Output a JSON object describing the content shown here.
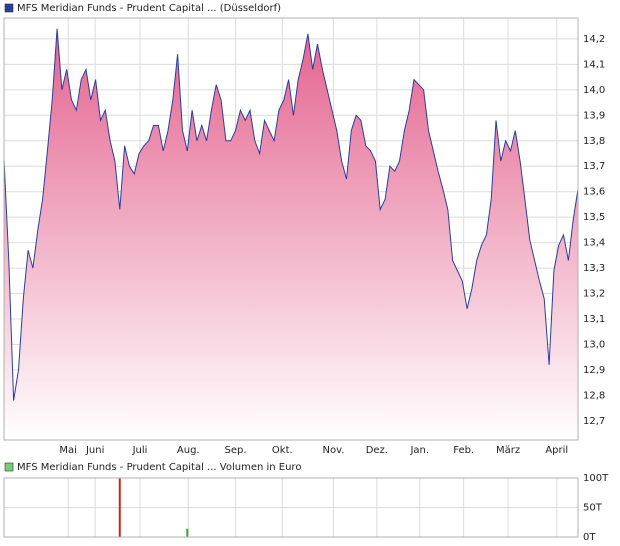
{
  "chart_data": [
    {
      "type": "area",
      "series": [
        {
          "name": "MFS Meridian Funds - Prudent Capital ... (Düsseldorf)",
          "color": "#2a3e9c",
          "values": [
            13.73,
            13.33,
            12.78,
            12.9,
            13.18,
            13.37,
            13.3,
            13.45,
            13.57,
            13.76,
            13.96,
            14.24,
            14.0,
            14.08,
            13.96,
            13.92,
            14.04,
            14.08,
            13.96,
            14.04,
            13.88,
            13.92,
            13.8,
            13.72,
            13.53,
            13.78,
            13.7,
            13.67,
            13.75,
            13.78,
            13.8,
            13.86,
            13.86,
            13.76,
            13.84,
            13.96,
            14.14,
            13.84,
            13.76,
            13.92,
            13.8,
            13.86,
            13.8,
            13.92,
            14.02,
            13.96,
            13.8,
            13.8,
            13.84,
            13.92,
            13.88,
            13.92,
            13.8,
            13.75,
            13.88,
            13.84,
            13.8,
            13.92,
            13.96,
            14.04,
            13.9,
            14.04,
            14.12,
            14.22,
            14.08,
            14.18,
            14.08,
            14.0,
            13.92,
            13.84,
            13.72,
            13.65,
            13.84,
            13.9,
            13.88,
            13.78,
            13.76,
            13.72,
            13.53,
            13.57,
            13.7,
            13.68,
            13.72,
            13.84,
            13.92,
            14.04,
            14.02,
            14.0,
            13.84,
            13.76,
            13.68,
            13.61,
            13.53,
            13.33,
            13.29,
            13.25,
            13.14,
            13.22,
            13.33,
            13.39,
            13.43,
            13.57,
            13.88,
            13.72,
            13.8,
            13.76,
            13.84,
            13.72,
            13.57,
            13.41,
            13.33,
            13.25,
            13.18,
            12.92,
            13.29,
            13.39,
            13.43,
            13.33,
            13.49,
            13.61
          ]
        }
      ],
      "xlim": [
        0,
        119
      ],
      "xticks": [
        {
          "value": 13.3,
          "label": "Mai"
        },
        {
          "value": 18.9,
          "label": "Juni"
        },
        {
          "value": 28.2,
          "label": "Juli"
        },
        {
          "value": 38.2,
          "label": "Aug."
        },
        {
          "value": 48,
          "label": "Sep."
        },
        {
          "value": 57.7,
          "label": "Okt."
        },
        {
          "value": 68.3,
          "label": "Nov."
        },
        {
          "value": 77.3,
          "label": "Dez."
        },
        {
          "value": 86.2,
          "label": "Jan."
        },
        {
          "value": 95.3,
          "label": "Feb."
        },
        {
          "value": 104.5,
          "label": "März"
        },
        {
          "value": 114.6,
          "label": "April"
        }
      ],
      "ylim": [
        12.625,
        14.282
      ],
      "yticks": [
        {
          "value": 12.7,
          "label": "12,7"
        },
        {
          "value": 12.8,
          "label": "12,8"
        },
        {
          "value": 12.9,
          "label": "12,9"
        },
        {
          "value": 13.0,
          "label": "13,0"
        },
        {
          "value": 13.1,
          "label": "13,1"
        },
        {
          "value": 13.2,
          "label": "13,2"
        },
        {
          "value": 13.3,
          "label": "13,3"
        },
        {
          "value": 13.4,
          "label": "13,4"
        },
        {
          "value": 13.5,
          "label": "13,5"
        },
        {
          "value": 13.6,
          "label": "13,6"
        },
        {
          "value": 13.7,
          "label": "13,7"
        },
        {
          "value": 13.8,
          "label": "13,8"
        },
        {
          "value": 13.9,
          "label": "13,9"
        },
        {
          "value": 14.0,
          "label": "14,0"
        },
        {
          "value": 14.1,
          "label": "14,1"
        },
        {
          "value": 14.2,
          "label": "14,2"
        }
      ],
      "grid": true
    },
    {
      "type": "bar",
      "series": [
        {
          "name": "MFS Meridian Funds - Prudent Capital ... Volumen in Euro",
          "color": "#77cc77",
          "x": [
            24,
            38
          ],
          "values": [
            100,
            14
          ],
          "colors": [
            "#cc2222",
            "#33aa33"
          ]
        }
      ],
      "xlim": [
        0,
        119
      ],
      "ylim": [
        0,
        100
      ],
      "yticks": [
        {
          "value": 0,
          "label": "0T"
        },
        {
          "value": 50,
          "label": "50T"
        },
        {
          "value": 100,
          "label": "100T"
        }
      ],
      "grid": true
    }
  ]
}
